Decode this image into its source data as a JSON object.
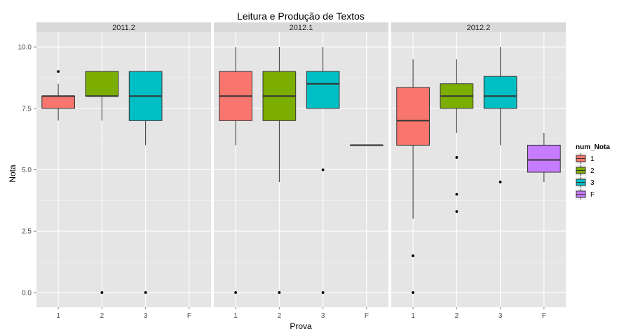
{
  "chart_data": {
    "type": "boxplot",
    "title": "Leitura e Produção de Textos",
    "xlabel": "Prova",
    "ylabel": "Nota",
    "ylim": [
      -0.6,
      10.6
    ],
    "yticks": [
      0.0,
      2.5,
      5.0,
      7.5,
      10.0
    ],
    "ytick_labels": [
      "0.0",
      "2.5",
      "5.0",
      "7.5",
      "10.0"
    ],
    "categories": [
      "1",
      "2",
      "3",
      "F"
    ],
    "grid": true,
    "legend": {
      "title": "num_Nota",
      "position": "right",
      "entries": [
        {
          "label": "1",
          "color": "#F8766D"
        },
        {
          "label": "2",
          "color": "#7CAE00"
        },
        {
          "label": "3",
          "color": "#00BFC4"
        },
        {
          "label": "F",
          "color": "#C77CFF"
        }
      ]
    },
    "panels": [
      {
        "label": "2011.2",
        "boxes": [
          {
            "category": "1",
            "q1": 7.5,
            "median": 8.0,
            "q3": 8.0,
            "whisker_low": 7.0,
            "whisker_high": 8.5,
            "outliers": [
              9.0
            ]
          },
          {
            "category": "2",
            "q1": 8.0,
            "median": 8.0,
            "q3": 9.0,
            "whisker_low": 7.0,
            "whisker_high": 9.0,
            "outliers": [
              0.0
            ]
          },
          {
            "category": "3",
            "q1": 7.0,
            "median": 8.0,
            "q3": 9.0,
            "whisker_low": 6.0,
            "whisker_high": 9.0,
            "outliers": [
              0.0
            ]
          }
        ]
      },
      {
        "label": "2012.1",
        "boxes": [
          {
            "category": "1",
            "q1": 7.0,
            "median": 8.0,
            "q3": 9.0,
            "whisker_low": 6.0,
            "whisker_high": 10.0,
            "outliers": [
              0.0
            ]
          },
          {
            "category": "2",
            "q1": 7.0,
            "median": 8.0,
            "q3": 9.0,
            "whisker_low": 4.5,
            "whisker_high": 10.0,
            "outliers": [
              0.0
            ]
          },
          {
            "category": "3",
            "q1": 7.5,
            "median": 8.5,
            "q3": 9.0,
            "whisker_low": 7.5,
            "whisker_high": 10.0,
            "outliers": [
              5.0,
              0.0
            ]
          },
          {
            "category": "F",
            "q1": 6.0,
            "median": 6.0,
            "q3": 6.0,
            "whisker_low": 6.0,
            "whisker_high": 6.0,
            "outliers": []
          }
        ]
      },
      {
        "label": "2012.2",
        "boxes": [
          {
            "category": "1",
            "q1": 6.0,
            "median": 7.0,
            "q3": 8.35,
            "whisker_low": 3.0,
            "whisker_high": 9.5,
            "outliers": [
              1.5,
              0.0
            ]
          },
          {
            "category": "2",
            "q1": 7.5,
            "median": 8.0,
            "q3": 8.5,
            "whisker_low": 6.5,
            "whisker_high": 9.5,
            "outliers": [
              5.5,
              4.0,
              3.3
            ]
          },
          {
            "category": "3",
            "q1": 7.5,
            "median": 8.0,
            "q3": 8.8,
            "whisker_low": 6.0,
            "whisker_high": 10.0,
            "outliers": [
              4.5
            ]
          },
          {
            "category": "F",
            "q1": 4.9,
            "median": 5.4,
            "q3": 6.0,
            "whisker_low": 4.5,
            "whisker_high": 6.5,
            "outliers": []
          }
        ]
      }
    ]
  }
}
